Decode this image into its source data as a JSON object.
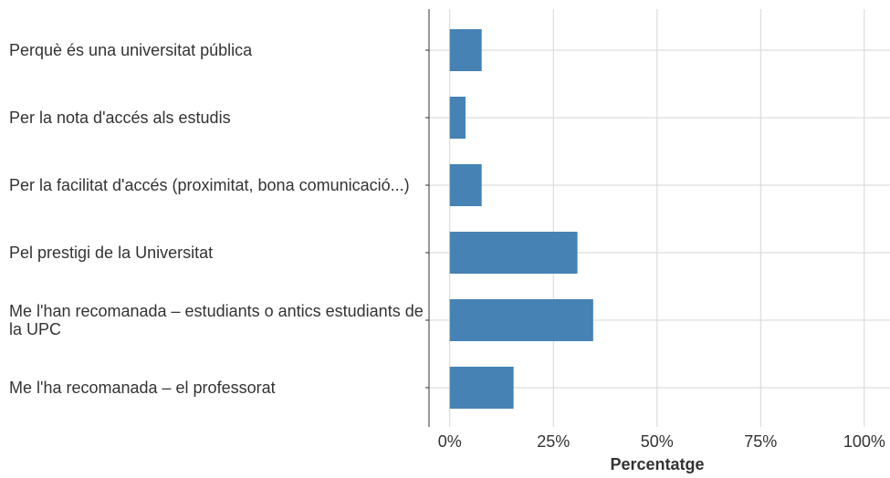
{
  "chart_data": {
    "type": "barh",
    "xlabel": "Percentatge",
    "categories": [
      "Perquè és una universitat pública",
      "Per la nota d'accés als estudis",
      "Per la facilitat d'accés (proximitat, bona comunicació...)",
      "Pel prestigi de la Universitat",
      "Me l'han recomanada – estudiants o antics estudiants de la UPC",
      "Me l'ha recomanada – el professorat"
    ],
    "values": [
      7.7,
      3.8,
      7.7,
      30.8,
      34.6,
      15.4
    ],
    "color": "#4682b4",
    "xlim": [
      -5,
      106.2
    ],
    "xticks": [
      {
        "value": 0,
        "label": "0%"
      },
      {
        "value": 25,
        "label": "25%"
      },
      {
        "value": 50,
        "label": "50%"
      },
      {
        "value": 75,
        "label": "75%"
      },
      {
        "value": 100,
        "label": "100%"
      }
    ],
    "grid": true
  }
}
